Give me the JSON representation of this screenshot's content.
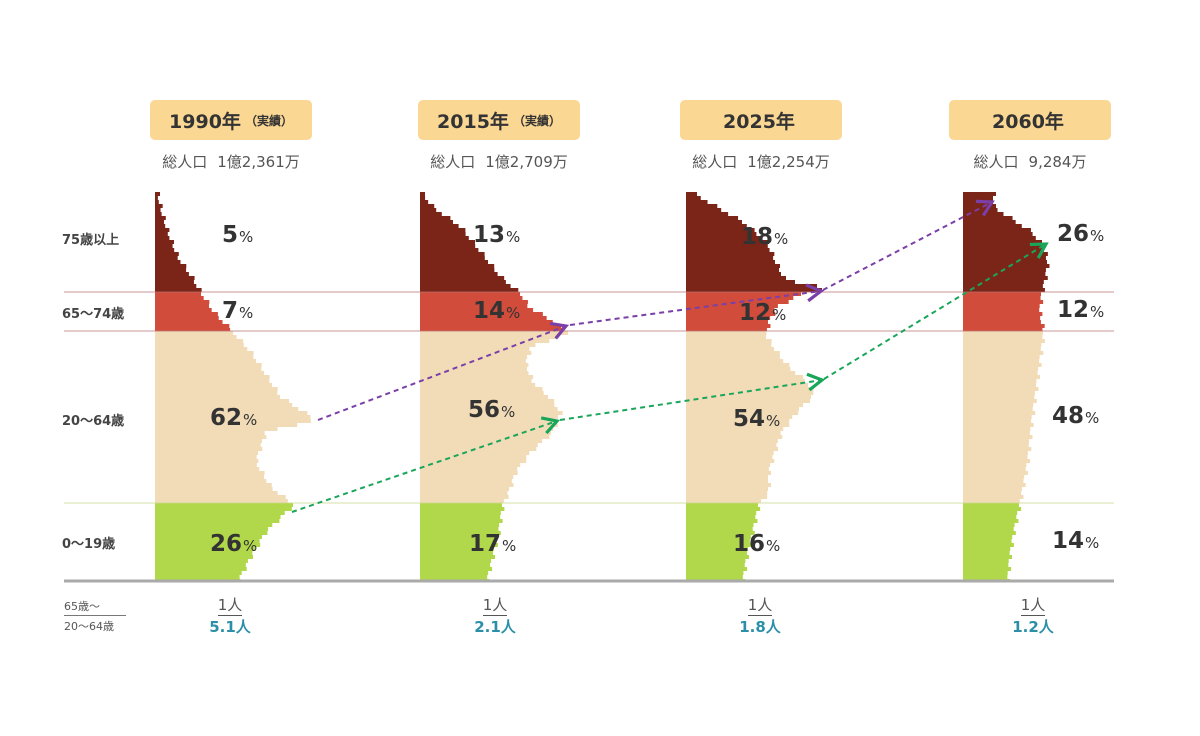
{
  "colors": {
    "age75plus": "#7b2418",
    "age65to74": "#d14c3b",
    "age20to64": "#f2dcb8",
    "age0to19": "#b1d84a",
    "header_bg": "#fbd794",
    "ratio_text": "#2b8fa8",
    "arrow_purple": "#7b3fa8",
    "arrow_green": "#1aa65a",
    "baseline": "#aaaaaa"
  },
  "age_labels": [
    "75歳以上",
    "65〜74歳",
    "20〜64歳",
    "0〜19歳"
  ],
  "ratio_label": {
    "numerator": "65歳〜",
    "denominator": "20〜64歳"
  },
  "percent_unit": "%",
  "years": [
    {
      "year": "1990年",
      "note": "（実績）",
      "total_label": "総人口",
      "total": "1億2,361万",
      "pct": [
        "5",
        "7",
        "62",
        "26"
      ],
      "ratio_num": "1人",
      "ratio_den": "5.1人"
    },
    {
      "year": "2015年",
      "note": "（実績）",
      "total_label": "総人口",
      "total": "1億2,709万",
      "pct": [
        "13",
        "14",
        "56",
        "17"
      ],
      "ratio_num": "1人",
      "ratio_den": "2.1人"
    },
    {
      "year": "2025年",
      "note": "",
      "total_label": "総人口",
      "total": "1億2,254万",
      "pct": [
        "18",
        "12",
        "54",
        "16"
      ],
      "ratio_num": "1人",
      "ratio_den": "1.8人"
    },
    {
      "year": "2060年",
      "note": "",
      "total_label": "総人口",
      "total": "9,284万",
      "pct": [
        "26",
        "12",
        "48",
        "14"
      ],
      "ratio_num": "1人",
      "ratio_den": "1.2人"
    }
  ],
  "chart_data": {
    "type": "area",
    "categories": [
      "1990年",
      "2015年",
      "2025年",
      "2060年"
    ],
    "series": [
      {
        "name": "75歳以上",
        "values": [
          5,
          13,
          18,
          26
        ]
      },
      {
        "name": "65〜74歳",
        "values": [
          7,
          14,
          12,
          12
        ]
      },
      {
        "name": "20〜64歳",
        "values": [
          62,
          56,
          54,
          48
        ]
      },
      {
        "name": "0〜19歳",
        "values": [
          26,
          17,
          16,
          14
        ]
      }
    ],
    "ratio_65plus_to_20_64": [
      "1人 / 5.1人",
      "1人 / 2.1人",
      "1人 / 1.8人",
      "1人 / 1.2人"
    ]
  }
}
